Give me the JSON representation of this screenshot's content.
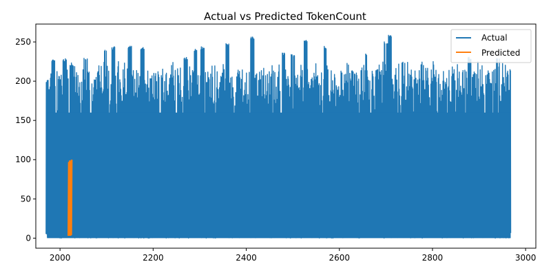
{
  "chart_data": {
    "type": "line",
    "title": "Actual vs Predicted TokenCount",
    "xlabel": "",
    "ylabel": "",
    "xlim": [
      1948,
      3022
    ],
    "ylim": [
      -12.8,
      272.8
    ],
    "xticks": [
      2000,
      2200,
      2400,
      2600,
      2800,
      3000
    ],
    "yticks": [
      0,
      50,
      100,
      150,
      200,
      250
    ],
    "grid": false,
    "legend_position": "top-right",
    "series": [
      {
        "name": "Actual",
        "color": "#1f77b4",
        "x_range": [
          1970,
          2968
        ],
        "y_range": [
          0,
          259
        ],
        "peaks": [
          {
            "x": 1972,
            "y": 204
          },
          {
            "x": 1985,
            "y": 228
          },
          {
            "x": 2010,
            "y": 229
          },
          {
            "x": 2025,
            "y": 222
          },
          {
            "x": 2055,
            "y": 231
          },
          {
            "x": 2097,
            "y": 240
          },
          {
            "x": 2115,
            "y": 244
          },
          {
            "x": 2150,
            "y": 246
          },
          {
            "x": 2177,
            "y": 243
          },
          {
            "x": 2270,
            "y": 231
          },
          {
            "x": 2291,
            "y": 241
          },
          {
            "x": 2306,
            "y": 244
          },
          {
            "x": 2360,
            "y": 249
          },
          {
            "x": 2413,
            "y": 257
          },
          {
            "x": 2480,
            "y": 236
          },
          {
            "x": 2500,
            "y": 235
          },
          {
            "x": 2528,
            "y": 253
          },
          {
            "x": 2571,
            "y": 245
          },
          {
            "x": 2655,
            "y": 236
          },
          {
            "x": 2700,
            "y": 251
          },
          {
            "x": 2708,
            "y": 259
          },
          {
            "x": 2880,
            "y": 231
          },
          {
            "x": 2940,
            "y": 230
          }
        ]
      },
      {
        "name": "Predicted",
        "color": "#ff7f0e",
        "x": [
          2018,
          2019,
          2020,
          2021,
          2022,
          2023,
          2024,
          2025
        ],
        "values": [
          3,
          97,
          4,
          99,
          3,
          98,
          4,
          100
        ]
      }
    ]
  }
}
